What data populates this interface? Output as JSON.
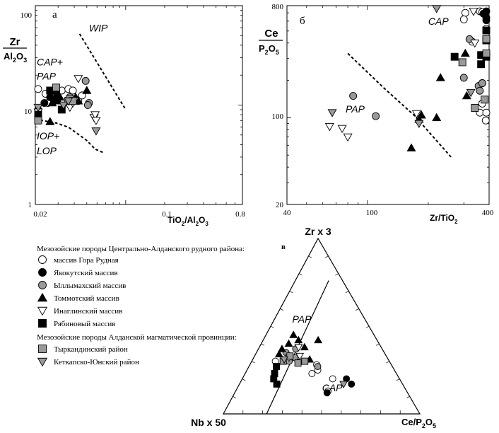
{
  "colors": {
    "ink": "#000000",
    "gray_fill": "#999999",
    "white_fill": "#ffffff",
    "paper": "#ffffff"
  },
  "chart_data": [
    {
      "id": "a",
      "panel_label": "а",
      "type": "scatter",
      "xscale": "log",
      "yscale": "log",
      "xlim": [
        0.02,
        0.8
      ],
      "ylim": [
        1,
        100
      ],
      "xticks": [
        "0.02",
        "0.1",
        "0.8"
      ],
      "yticks": [
        "1",
        "10",
        "100"
      ],
      "xlabel": {
        "main": "TiO",
        "sub1": "2",
        "slash": "/Al",
        "sub2": "2",
        "tail": "O",
        "sub3": "3"
      },
      "ylabel": {
        "num": "Zr",
        "den_main": "Al",
        "den_sub1": "2",
        "den_mid": "O",
        "den_sub2": "3"
      },
      "field_labels": [
        {
          "text": "WIP",
          "x": 0.052,
          "y": 55
        },
        {
          "text": "CAP+",
          "x": 0.0205,
          "y": 25
        },
        {
          "text": "PAP",
          "x": 0.0205,
          "y": 18
        },
        {
          "text": "IOP+",
          "x": 0.0205,
          "y": 4.5
        },
        {
          "text": "LOP",
          "x": 0.0205,
          "y": 3.2
        }
      ],
      "boundaries": [
        [
          [
            0.044,
            52
          ],
          [
            0.1,
            9
          ]
        ],
        [
          [
            0.02,
            7.2
          ],
          [
            0.029,
            6.6
          ],
          [
            0.036,
            6.0
          ],
          [
            0.042,
            5.2
          ],
          [
            0.05,
            4.4
          ],
          [
            0.058,
            3.6
          ],
          [
            0.068,
            3.3
          ]
        ]
      ],
      "series": [
        {
          "key": "gora",
          "points": [
            [
              0.0205,
              14.5
            ],
            [
              0.025,
              10.5
            ],
            [
              0.028,
              12
            ],
            [
              0.032,
              14
            ],
            [
              0.036,
              14.5
            ],
            [
              0.039,
              14
            ],
            [
              0.043,
              11
            ],
            [
              0.046,
              12.5
            ],
            [
              0.024,
              13
            ]
          ]
        },
        {
          "key": "yakok",
          "points": [
            [
              0.0205,
              7.5
            ],
            [
              0.0205,
              9
            ],
            [
              0.0235,
              10.5
            ],
            [
              0.026,
              12
            ],
            [
              0.029,
              13.5
            ]
          ]
        },
        {
          "key": "yllym",
          "points": [
            [
              0.036,
              11
            ],
            [
              0.037,
              12
            ],
            [
              0.049,
              17.5
            ],
            [
              0.052,
              10.5
            ],
            [
              0.051,
              10
            ]
          ]
        },
        {
          "key": "tommot",
          "points": [
            [
              0.026,
              6.8
            ],
            [
              0.027,
              10.5
            ],
            [
              0.03,
              11
            ],
            [
              0.031,
              12
            ],
            [
              0.035,
              10.5
            ],
            [
              0.041,
              12
            ],
            [
              0.043,
              11
            ],
            [
              0.05,
              14
            ]
          ]
        },
        {
          "key": "inagli",
          "points": [
            [
              0.0205,
              8.5
            ],
            [
              0.037,
              9.5
            ],
            [
              0.039,
              10.5
            ],
            [
              0.04,
              11
            ],
            [
              0.043,
              18.5
            ],
            [
              0.057,
              7.5
            ],
            [
              0.058,
              8
            ],
            [
              0.059,
              7
            ]
          ]
        },
        {
          "key": "ryabin",
          "points": [
            [
              0.0205,
              8
            ],
            [
              0.026,
              14
            ],
            [
              0.028,
              11.5
            ],
            [
              0.032,
              9
            ]
          ]
        },
        {
          "key": "tyrkand",
          "points": [
            [
              0.0205,
              7
            ],
            [
              0.029,
              15
            ],
            [
              0.036,
              11
            ],
            [
              0.037,
              11.5
            ],
            [
              0.039,
              11
            ]
          ]
        },
        {
          "key": "ketkap",
          "points": [
            [
              0.0205,
              9.5
            ],
            [
              0.033,
              10
            ],
            [
              0.036,
              11
            ],
            [
              0.059,
              5.5
            ]
          ]
        }
      ]
    },
    {
      "id": "b",
      "panel_label": "б",
      "type": "scatter",
      "xscale": "log",
      "yscale": "log",
      "xlim": [
        40,
        400
      ],
      "ylim": [
        20,
        800
      ],
      "xticks": [
        "40",
        "100",
        "400"
      ],
      "yticks": [
        "20",
        "100",
        "800"
      ],
      "xlabel": {
        "main": "Zr/TiO",
        "sub1": "2"
      },
      "ylabel": {
        "num": "Ce",
        "den_main": "P",
        "den_sub1": "2",
        "den_mid": "O",
        "den_sub2": "5"
      },
      "field_labels": [
        {
          "text": "CAP",
          "x": 200,
          "y": 560
        },
        {
          "text": "PAP",
          "x": 78,
          "y": 110
        }
      ],
      "boundaries": [
        [
          [
            80,
            330
          ],
          [
            120,
            175
          ],
          [
            170,
            105
          ],
          [
            260,
            48
          ]
        ]
      ],
      "series": [
        {
          "key": "gora",
          "points": [
            [
              305,
              700
            ],
            [
              330,
              410
            ],
            [
              360,
              720
            ],
            [
              370,
              710
            ],
            [
              390,
              520
            ],
            [
              300,
              620
            ],
            [
              370,
              130
            ],
            [
              360,
              110
            ],
            [
              390,
              110
            ],
            [
              370,
              190
            ],
            [
              385,
              95
            ]
          ]
        },
        {
          "key": "yakok",
          "points": [
            [
              375,
              690
            ],
            [
              390,
              720
            ],
            [
              395,
              640
            ],
            [
              400,
              610
            ]
          ]
        },
        {
          "key": "yllym",
          "points": [
            [
              85,
              150
            ],
            [
              110,
              103
            ],
            [
              300,
              210
            ],
            [
              320,
              430
            ],
            [
              355,
              180
            ],
            [
              360,
              165
            ],
            [
              370,
              190
            ]
          ]
        },
        {
          "key": "tommot",
          "points": [
            [
              165,
              57
            ],
            [
              180,
              97
            ],
            [
              185,
              105
            ],
            [
              220,
              100
            ],
            [
              230,
              210
            ],
            [
              310,
              150
            ],
            [
              305,
              330
            ]
          ]
        },
        {
          "key": "inagli",
          "points": [
            [
              65,
              85
            ],
            [
              75,
              82
            ],
            [
              80,
              70
            ],
            [
              175,
              108
            ],
            [
              335,
              720
            ],
            [
              340,
              400
            ]
          ]
        },
        {
          "key": "ryabin",
          "points": [
            [
              270,
              310
            ],
            [
              365,
              270
            ],
            [
              365,
              320
            ],
            [
              390,
              310
            ],
            [
              390,
              420
            ],
            [
              400,
              505
            ]
          ]
        },
        {
          "key": "tyrkand",
          "points": [
            [
              295,
              280
            ],
            [
              340,
              120
            ],
            [
              380,
              140
            ],
            [
              395,
              430
            ],
            [
              390,
              330
            ]
          ]
        },
        {
          "key": "ketkap",
          "points": [
            [
              67,
              110
            ],
            [
              180,
              90
            ],
            [
              220,
              800
            ],
            [
              325,
              160
            ]
          ]
        }
      ]
    },
    {
      "id": "c",
      "panel_label": "в",
      "type": "ternary",
      "apex_labels": {
        "top": "Zr x 3",
        "left": "Nb x 50",
        "right_main": "Ce/P",
        "right_sub1": "2",
        "right_mid": "O",
        "right_sub2": "5"
      },
      "field_labels": [
        {
          "text": "PAP",
          "a": 0.52,
          "b": 0.38,
          "c": 0.1
        },
        {
          "text": "CAP",
          "a": 0.13,
          "b": 0.43,
          "c": 0.44
        }
      ],
      "boundary": [
        [
          0.76,
          0.07,
          0.17
        ],
        [
          0.0,
          0.78,
          0.22
        ]
      ],
      "series": [
        {
          "key": "gora",
          "points": [
            [
              0.3,
              0.58,
              0.12
            ],
            [
              0.31,
              0.5,
              0.19
            ],
            [
              0.28,
              0.38,
              0.34
            ],
            [
              0.25,
              0.39,
              0.36
            ],
            [
              0.23,
              0.43,
              0.34
            ],
            [
              0.3,
              0.45,
              0.25
            ],
            [
              0.2,
              0.34,
              0.46
            ],
            [
              0.13,
              0.4,
              0.47
            ]
          ]
        },
        {
          "key": "yakok",
          "points": [
            [
              0.2,
              0.27,
              0.53
            ],
            [
              0.17,
              0.26,
              0.57
            ],
            [
              0.12,
              0.41,
              0.47
            ]
          ]
        },
        {
          "key": "yllym",
          "points": [
            [
              0.35,
              0.5,
              0.15
            ],
            [
              0.32,
              0.47,
              0.21
            ],
            [
              0.37,
              0.44,
              0.19
            ],
            [
              0.3,
              0.51,
              0.19
            ],
            [
              0.27,
              0.38,
              0.35
            ]
          ]
        },
        {
          "key": "tommot",
          "points": [
            [
              0.45,
              0.41,
              0.14
            ],
            [
              0.34,
              0.54,
              0.12
            ],
            [
              0.37,
              0.51,
              0.12
            ],
            [
              0.4,
              0.46,
              0.14
            ],
            [
              0.42,
              0.4,
              0.18
            ],
            [
              0.38,
              0.39,
              0.23
            ],
            [
              0.42,
              0.3,
              0.28
            ],
            [
              0.31,
              0.4,
              0.29
            ]
          ]
        },
        {
          "key": "inagli",
          "points": [
            [
              0.32,
              0.5,
              0.18
            ],
            [
              0.33,
              0.44,
              0.23
            ],
            [
              0.38,
              0.42,
              0.2
            ]
          ]
        },
        {
          "key": "ryabin",
          "points": [
            [
              0.27,
              0.59,
              0.14
            ],
            [
              0.23,
              0.62,
              0.15
            ],
            [
              0.2,
              0.64,
              0.16
            ],
            [
              0.17,
              0.64,
              0.19
            ]
          ]
        },
        {
          "key": "tyrkand",
          "points": [
            [
              0.3,
              0.54,
              0.16
            ],
            [
              0.33,
              0.49,
              0.18
            ],
            [
              0.29,
              0.47,
              0.24
            ],
            [
              0.3,
              0.43,
              0.27
            ]
          ]
        },
        {
          "key": "ketkap",
          "points": [
            [
              0.31,
              0.53,
              0.16
            ],
            [
              0.17,
              0.3,
              0.53
            ]
          ]
        }
      ]
    }
  ],
  "legend": {
    "header1": "Мезозойские породы Центрально-Алданского рудного района:",
    "header2": "Мезозойские породы Алданской магматической провинции:",
    "items": [
      {
        "key": "gora",
        "label": "массив Гора Рудная",
        "marker": "circle",
        "fill": "#ffffff"
      },
      {
        "key": "yakok",
        "label": "Якокутский массив",
        "marker": "circle",
        "fill": "#000000"
      },
      {
        "key": "yllym",
        "label": "Ыллымахский массив",
        "marker": "circle",
        "fill": "#999999"
      },
      {
        "key": "tommot",
        "label": "Томмотский массив",
        "marker": "triangle-up",
        "fill": "#000000"
      },
      {
        "key": "inagli",
        "label": "Инаглинский массив",
        "marker": "triangle-down",
        "fill": "#ffffff"
      },
      {
        "key": "ryabin",
        "label": "Рябиновый массив",
        "marker": "square",
        "fill": "#000000"
      },
      {
        "key": "tyrkand",
        "label": "Тыркандинский район",
        "marker": "square",
        "fill": "#999999"
      },
      {
        "key": "ketkap",
        "label": "Кеткапско-Юнский район",
        "marker": "triangle-down",
        "fill": "#999999"
      }
    ]
  }
}
